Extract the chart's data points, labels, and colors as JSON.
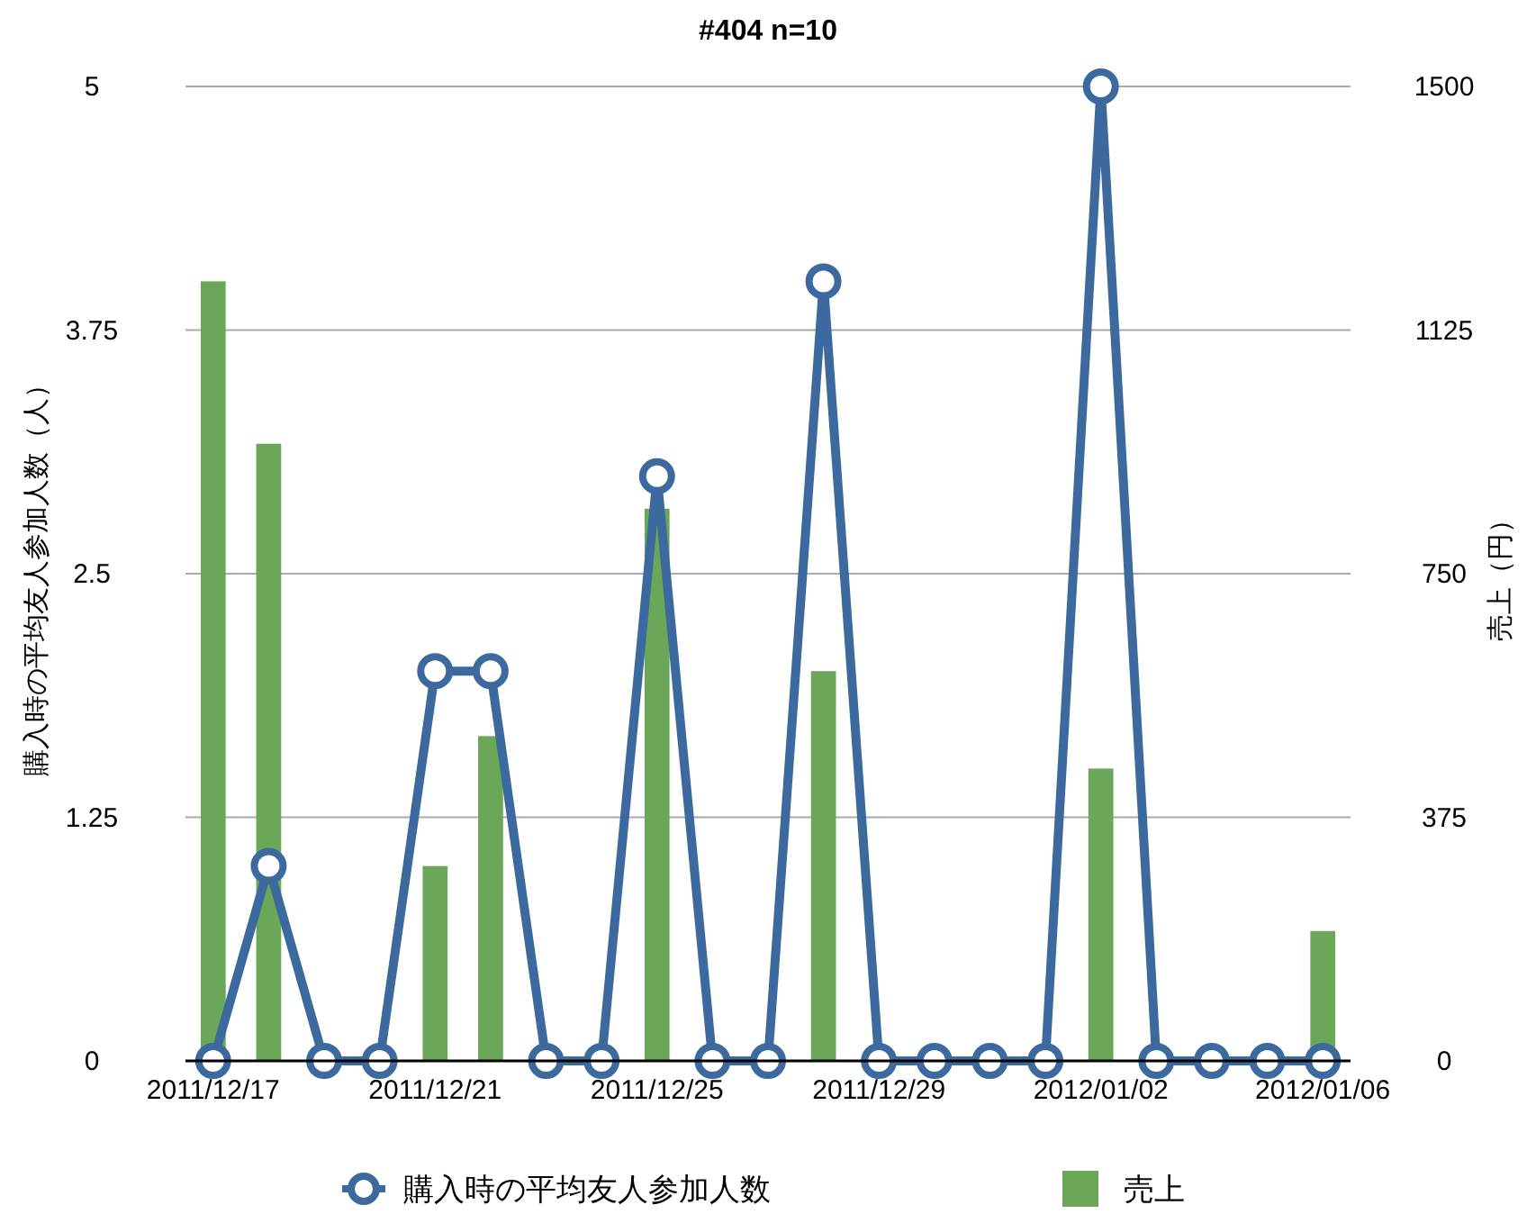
{
  "chart_data": {
    "type": "bar",
    "title": "#404 n=10",
    "ylabel": "購入時の平均友人参加人数（人）",
    "y2label": "売上（円）",
    "x": [
      "2011-12-17",
      "2011-12-18",
      "2011-12-19",
      "2011-12-20",
      "2011-12-21",
      "2011-12-22",
      "2011-12-23",
      "2011-12-24",
      "2011-12-25",
      "2011-12-26",
      "2011-12-27",
      "2011-12-28",
      "2011-12-29",
      "2011-12-30",
      "2011-12-31",
      "2012-01-01",
      "2012-01-02",
      "2012-01-03",
      "2012-01-04",
      "2012-01-05",
      "2012-01-06"
    ],
    "series": [
      {
        "name": "購入時の平均友人参加人数",
        "type": "line",
        "axis": "y",
        "color": "#3d6a9e",
        "marker": "circle",
        "line_style": "solid",
        "values": [
          0,
          1,
          0,
          0,
          2,
          2,
          0,
          0,
          3,
          0,
          0,
          4,
          0,
          0,
          0,
          0,
          5,
          0,
          0,
          0,
          0
        ]
      },
      {
        "name": "売上",
        "axis": "y2",
        "color": "#6aa758",
        "values": [
          1200,
          950,
          null,
          null,
          300,
          500,
          null,
          null,
          850,
          null,
          null,
          600,
          null,
          null,
          null,
          null,
          450,
          null,
          null,
          null,
          200
        ]
      }
    ],
    "xlim": [
      "2011-12-16T12:00",
      "2012-01-06T12:00"
    ],
    "xticks": [
      {
        "value": "2011-12-17",
        "label": "2011/12/17"
      },
      {
        "value": "2011-12-21",
        "label": "2011/12/21"
      },
      {
        "value": "2011-12-25",
        "label": "2011/12/25"
      },
      {
        "value": "2011-12-29",
        "label": "2011/12/29"
      },
      {
        "value": "2012-01-02",
        "label": "2012/01/02"
      },
      {
        "value": "2012-01-06",
        "label": "2012/01/06"
      }
    ],
    "ylim": [
      0,
      5
    ],
    "yticks": [
      0,
      1.25,
      2.5,
      3.75,
      5
    ],
    "y2lim": [
      0,
      1500
    ],
    "y2ticks": [
      0,
      375,
      750,
      1125,
      1500
    ],
    "grid": "y",
    "legend": "bottom"
  }
}
